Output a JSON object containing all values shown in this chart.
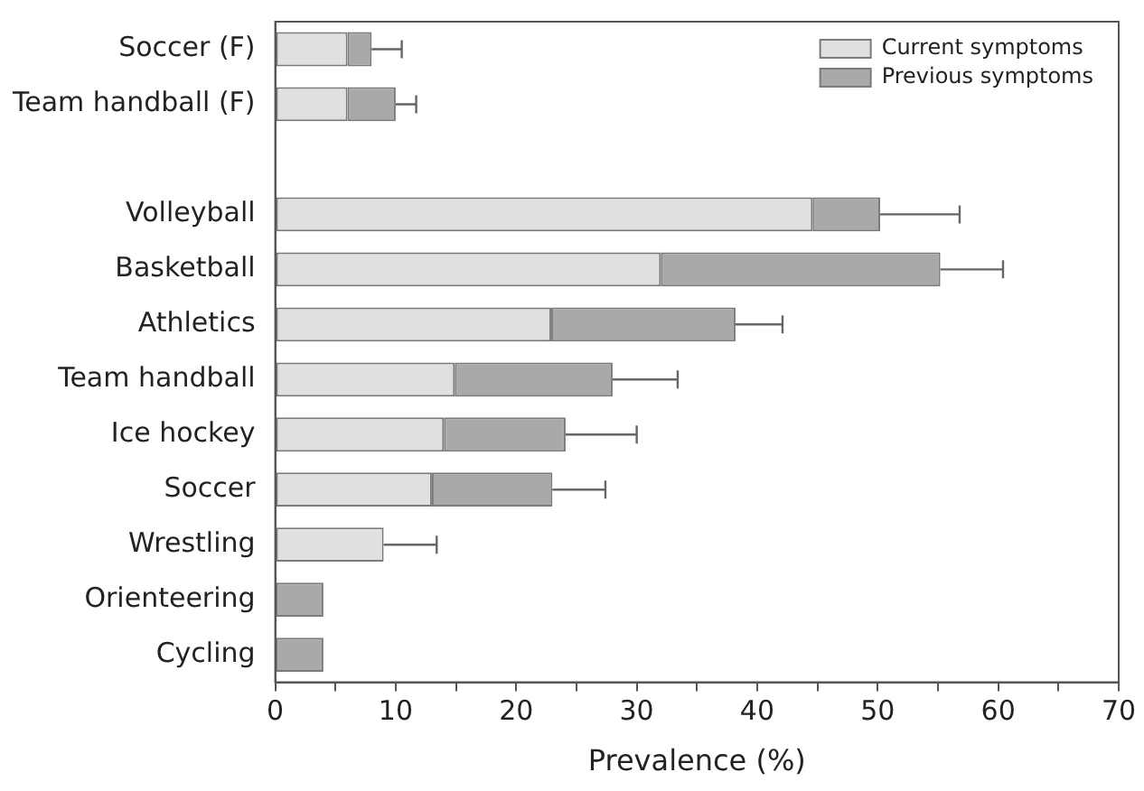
{
  "chart_data": {
    "type": "bar",
    "orientation": "horizontal",
    "stacked": true,
    "xlabel": "Prevalence (%)",
    "categories": [
      "Soccer (F)",
      "Team handball (F)",
      null,
      "Volleyball",
      "Basketball",
      "Athletics",
      "Team handball",
      "Ice hockey",
      "Soccer",
      "Wrestling",
      "Orienteering",
      "Cycling"
    ],
    "series": [
      {
        "name": "Current symptoms",
        "color": "#e0e0e0",
        "values": [
          6,
          6,
          null,
          44.6,
          32,
          22.9,
          14.9,
          14,
          13,
          9,
          0,
          0
        ],
        "errors": [
          null,
          null,
          null,
          null,
          null,
          null,
          null,
          null,
          null,
          [
            9,
            13.4
          ],
          null,
          null
        ]
      },
      {
        "name": "Previous symptoms",
        "color": "#a9a9a9",
        "values": [
          2,
          4,
          null,
          5.6,
          23.2,
          15.3,
          13.1,
          10.1,
          10,
          0,
          4,
          4
        ],
        "errors": [
          [
            8,
            10.5
          ],
          [
            10,
            11.7
          ],
          null,
          [
            50.2,
            56.8
          ],
          [
            55.2,
            60.4
          ],
          [
            38.2,
            42.1
          ],
          [
            28,
            33.4
          ],
          [
            24.1,
            30
          ],
          [
            23,
            27.4
          ],
          null,
          null,
          null
        ]
      }
    ],
    "xlim": [
      0,
      70
    ],
    "xticks": [
      0,
      {
        "value": 5,
        "label": null
      },
      10,
      {
        "value": 15,
        "label": null
      },
      20,
      {
        "value": 25,
        "label": null
      },
      30,
      {
        "value": 35,
        "label": null
      },
      40,
      {
        "value": 45,
        "label": null
      },
      50,
      {
        "value": 55,
        "label": null
      },
      60,
      {
        "value": 65,
        "label": null
      },
      70
    ],
    "grid": false,
    "legend": "top right"
  }
}
